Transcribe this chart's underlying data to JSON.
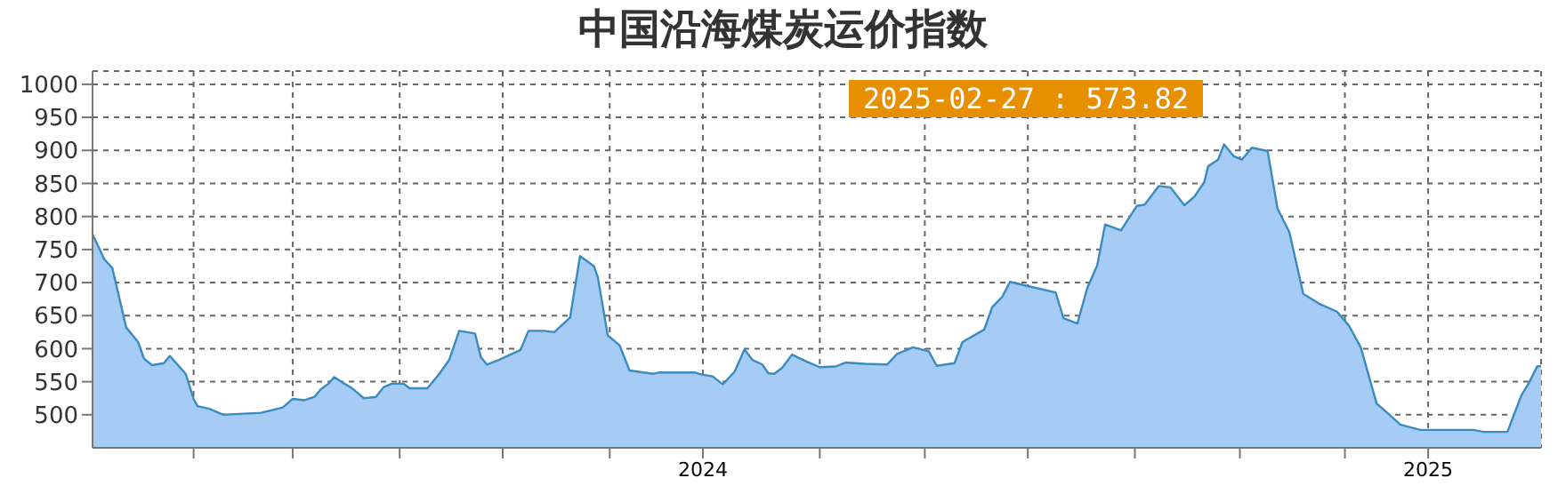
{
  "chart_data": {
    "type": "area",
    "title": "中国沿海煤炭运价指数",
    "x": [
      "2023-02-27",
      "2023-03-05",
      "2023-03-09",
      "2023-03-16",
      "2023-03-22",
      "2023-03-25",
      "2023-03-29",
      "2023-04-04",
      "2023-04-07",
      "2023-04-15",
      "2023-04-19",
      "2023-04-21",
      "2023-04-27",
      "2023-05-04",
      "2023-05-23",
      "2023-06-03",
      "2023-06-08",
      "2023-06-14",
      "2023-06-19",
      "2023-06-22",
      "2023-06-26",
      "2023-06-29",
      "2023-07-03",
      "2023-07-08",
      "2023-07-14",
      "2023-07-20",
      "2023-07-24",
      "2023-07-28",
      "2023-08-03",
      "2023-08-06",
      "2023-08-15",
      "2023-08-21",
      "2023-08-26",
      "2023-08-31",
      "2023-09-08",
      "2023-09-11",
      "2023-09-14",
      "2023-09-20",
      "2023-09-23",
      "2023-10-01",
      "2023-10-05",
      "2023-10-13",
      "2023-10-18",
      "2023-10-26",
      "2023-10-31",
      "2023-11-07",
      "2023-11-09",
      "2023-11-14",
      "2023-11-20",
      "2023-11-25",
      "2023-12-07",
      "2023-12-10",
      "2023-12-28",
      "2023-12-31",
      "2024-01-06",
      "2024-01-11",
      "2024-01-17",
      "2024-01-22",
      "2024-01-26",
      "2024-01-31",
      "2024-02-03",
      "2024-02-06",
      "2024-02-10",
      "2024-02-15",
      "2024-02-22",
      "2024-02-29",
      "2024-03-08",
      "2024-03-13",
      "2024-03-23",
      "2024-04-03",
      "2024-04-08",
      "2024-04-16",
      "2024-04-24",
      "2024-04-28",
      "2024-05-07",
      "2024-05-11",
      "2024-05-22",
      "2024-05-26",
      "2024-05-31",
      "2024-06-04",
      "2024-06-14",
      "2024-06-27",
      "2024-07-01",
      "2024-07-08",
      "2024-07-13",
      "2024-07-18",
      "2024-07-22",
      "2024-07-30",
      "2024-08-07",
      "2024-08-11",
      "2024-08-18",
      "2024-08-24",
      "2024-08-31",
      "2024-09-05",
      "2024-09-10",
      "2024-09-12",
      "2024-09-17",
      "2024-09-20",
      "2024-09-25",
      "2024-09-29",
      "2024-10-04",
      "2024-10-12",
      "2024-10-17",
      "2024-10-23",
      "2024-10-30",
      "2024-11-07",
      "2024-11-16",
      "2024-11-22",
      "2024-11-28",
      "2024-12-06",
      "2024-12-11",
      "2024-12-18",
      "2024-12-28",
      "2025-01-24",
      "2025-01-29",
      "2025-02-10",
      "2025-02-17",
      "2025-02-21",
      "2025-02-25",
      "2025-02-27"
    ],
    "values": [
      773,
      735,
      722,
      632,
      610,
      585,
      575,
      578,
      589,
      562,
      524,
      513,
      509,
      500,
      503,
      511,
      524,
      522,
      527,
      538,
      547,
      557,
      549,
      540,
      525,
      527,
      542,
      547,
      547,
      540,
      540,
      562,
      583,
      627,
      623,
      587,
      576,
      583,
      587,
      598,
      627,
      627,
      625,
      647,
      740,
      725,
      708,
      620,
      605,
      567,
      562,
      564,
      564,
      561,
      558,
      546,
      565,
      599,
      583,
      576,
      563,
      562,
      571,
      591,
      581,
      572,
      573,
      579,
      577,
      576,
      592,
      602,
      596,
      574,
      578,
      610,
      629,
      663,
      678,
      701,
      694,
      685,
      646,
      638,
      692,
      726,
      788,
      779,
      816,
      818,
      846,
      844,
      817,
      830,
      852,
      876,
      886,
      909,
      891,
      886,
      904,
      899,
      812,
      776,
      683,
      668,
      656,
      635,
      602,
      517,
      504,
      485,
      477,
      477,
      474,
      474,
      529,
      549,
      573,
      573.82
    ],
    "color": "#a6cbf5",
    "xlim": [
      "2023-02-27",
      "2025-02-27"
    ],
    "xticks": [
      {
        "value": "2023-04-19",
        "label": null
      },
      {
        "value": "2023-06-08",
        "label": null
      },
      {
        "value": "2023-08-01",
        "label": null
      },
      {
        "value": "2023-09-22",
        "label": null
      },
      {
        "value": "2023-11-15",
        "label": null
      },
      {
        "value": "2024-01-01",
        "label": "2024"
      },
      {
        "value": "2024-02-29",
        "label": null
      },
      {
        "value": "2024-04-22",
        "label": null
      },
      {
        "value": "2024-06-13",
        "label": null
      },
      {
        "value": "2024-08-06",
        "label": null
      },
      {
        "value": "2024-09-28",
        "label": null
      },
      {
        "value": "2024-11-20",
        "label": null
      },
      {
        "value": "2025-01-01",
        "label": "2025"
      }
    ],
    "ylim": [
      450,
      1020
    ],
    "yticks": [
      500,
      550,
      600,
      650,
      700,
      750,
      800,
      850,
      900,
      950,
      1000
    ],
    "grid": true,
    "annotations": [
      "2025-02-27 : 573.82"
    ]
  }
}
